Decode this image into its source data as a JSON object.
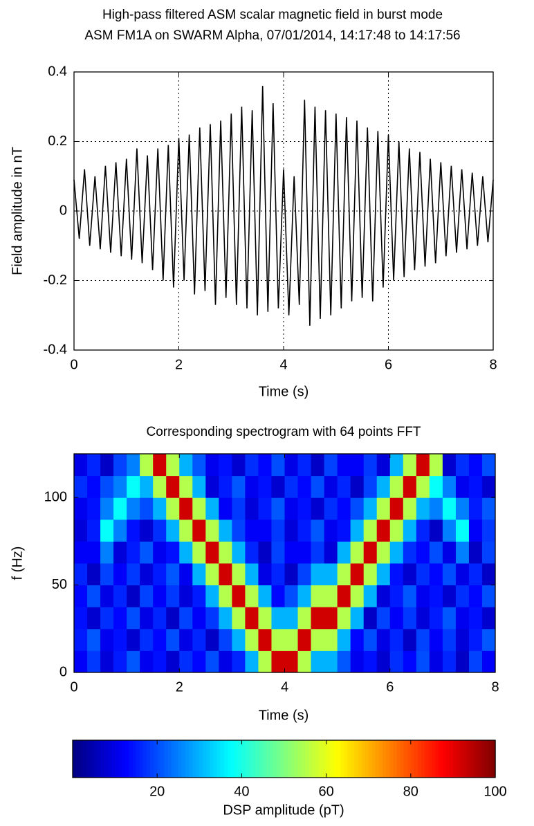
{
  "chart_data": [
    {
      "type": "line",
      "title": "High-pass filtered ASM scalar magnetic field in burst mode",
      "subtitle": "ASM FM1A on SWARM Alpha, 07/01/2014, 14:17:48 to 14:17:56",
      "xlabel": "Time (s)",
      "ylabel": "Field amplitude in nT",
      "color": "#000000",
      "grid": true,
      "xlim": [
        0,
        8
      ],
      "xticks": [
        0,
        2,
        4,
        6,
        8
      ],
      "ylim": [
        -0.4,
        0.4
      ],
      "yticks": [
        -0.4,
        -0.2,
        0,
        0.2,
        0.4
      ],
      "x": [
        0.0,
        0.1,
        0.2,
        0.3,
        0.4,
        0.5,
        0.6,
        0.7,
        0.8,
        0.9,
        1.0,
        1.1,
        1.2,
        1.3,
        1.4,
        1.5,
        1.6,
        1.7,
        1.8,
        1.9,
        2.0,
        2.1,
        2.2,
        2.3,
        2.4,
        2.5,
        2.6,
        2.7,
        2.8,
        2.9,
        3.0,
        3.1,
        3.2,
        3.3,
        3.4,
        3.5,
        3.6,
        3.7,
        3.8,
        3.9,
        4.0,
        4.1,
        4.2,
        4.3,
        4.4,
        4.5,
        4.6,
        4.7,
        4.8,
        4.9,
        5.0,
        5.1,
        5.2,
        5.3,
        5.4,
        5.5,
        5.6,
        5.7,
        5.8,
        5.9,
        6.0,
        6.1,
        6.2,
        6.3,
        6.4,
        6.5,
        6.6,
        6.7,
        6.8,
        6.9,
        7.0,
        7.1,
        7.2,
        7.3,
        7.4,
        7.5,
        7.6,
        7.7,
        7.8,
        7.9,
        8.0
      ],
      "values": [
        0.09,
        -0.08,
        0.12,
        -0.1,
        0.1,
        -0.11,
        0.13,
        -0.12,
        0.14,
        -0.13,
        0.15,
        -0.14,
        0.18,
        -0.15,
        0.16,
        -0.17,
        0.18,
        -0.2,
        0.19,
        -0.22,
        0.21,
        -0.2,
        0.22,
        -0.24,
        0.24,
        -0.23,
        0.25,
        -0.27,
        0.26,
        -0.25,
        0.28,
        -0.27,
        0.3,
        -0.28,
        0.29,
        -0.3,
        0.36,
        -0.29,
        0.31,
        -0.28,
        0.12,
        -0.3,
        0.1,
        -0.27,
        0.32,
        -0.33,
        0.3,
        -0.31,
        0.29,
        -0.3,
        0.28,
        -0.28,
        0.27,
        -0.26,
        0.26,
        -0.25,
        0.24,
        -0.26,
        0.23,
        -0.22,
        0.22,
        -0.2,
        0.2,
        -0.19,
        0.18,
        -0.17,
        0.17,
        -0.16,
        0.15,
        -0.15,
        0.14,
        -0.13,
        0.13,
        -0.12,
        0.12,
        -0.11,
        0.11,
        -0.1,
        0.1,
        -0.09,
        0.09
      ]
    },
    {
      "type": "heatmap",
      "title": "Corresponding spectrogram with 64 points FFT",
      "xlabel": "Time (s)",
      "ylabel": "f (Hz)",
      "colormap": "jet",
      "xlim": [
        0,
        8
      ],
      "xticks": [
        0,
        2,
        4,
        6,
        8
      ],
      "ylim": [
        0,
        125
      ],
      "yticks": [
        0,
        50,
        100
      ],
      "xbins": [
        0,
        0.25,
        0.5,
        0.75,
        1,
        1.25,
        1.5,
        1.75,
        2,
        2.25,
        2.5,
        2.75,
        3,
        3.25,
        3.5,
        3.75,
        4,
        4.25,
        4.5,
        4.75,
        5,
        5.25,
        5.5,
        5.75,
        6,
        6.25,
        6.5,
        6.75,
        7,
        7.25,
        7.5,
        7.75,
        8
      ],
      "ybins": [
        0,
        12.5,
        25,
        37.5,
        50,
        62.5,
        75,
        87.5,
        100,
        112.5,
        125
      ],
      "values": [
        [
          12,
          18,
          9,
          15,
          21,
          11,
          14,
          8,
          17,
          13,
          20,
          10,
          16,
          30,
          55,
          92,
          92,
          55,
          30,
          30,
          21,
          11,
          14,
          8,
          17,
          13,
          20,
          10,
          16,
          7,
          19,
          12
        ],
        [
          15,
          21,
          11,
          14,
          8,
          17,
          13,
          20,
          10,
          16,
          7,
          19,
          30,
          55,
          92,
          55,
          55,
          92,
          55,
          55,
          30,
          13,
          20,
          10,
          16,
          7,
          19,
          12,
          18,
          9,
          15,
          21
        ],
        [
          14,
          8,
          17,
          13,
          20,
          10,
          16,
          7,
          19,
          12,
          18,
          30,
          55,
          92,
          55,
          30,
          30,
          55,
          92,
          92,
          55,
          30,
          7,
          19,
          12,
          18,
          9,
          15,
          21,
          11,
          14,
          8
        ],
        [
          13,
          20,
          10,
          16,
          7,
          19,
          12,
          18,
          9,
          15,
          30,
          55,
          92,
          55,
          30,
          13,
          20,
          30,
          55,
          55,
          92,
          55,
          30,
          9,
          15,
          21,
          11,
          14,
          8,
          17,
          13,
          20
        ],
        [
          16,
          7,
          19,
          12,
          18,
          9,
          15,
          21,
          11,
          30,
          55,
          92,
          55,
          30,
          10,
          16,
          7,
          19,
          30,
          30,
          55,
          92,
          55,
          30,
          14,
          8,
          17,
          13,
          20,
          10,
          16,
          7
        ],
        [
          12,
          12,
          25,
          9,
          15,
          21,
          11,
          14,
          30,
          55,
          92,
          55,
          30,
          16,
          7,
          19,
          12,
          12,
          18,
          9,
          30,
          55,
          92,
          55,
          30,
          17,
          13,
          20,
          10,
          25,
          7,
          19
        ],
        [
          9,
          15,
          38,
          25,
          14,
          8,
          17,
          30,
          55,
          92,
          55,
          30,
          19,
          12,
          12,
          18,
          9,
          15,
          21,
          11,
          14,
          30,
          55,
          92,
          55,
          30,
          16,
          7,
          25,
          38,
          12,
          18
        ],
        [
          11,
          14,
          25,
          38,
          25,
          20,
          30,
          55,
          92,
          55,
          30,
          12,
          18,
          9,
          15,
          21,
          11,
          14,
          8,
          17,
          13,
          20,
          30,
          55,
          92,
          55,
          30,
          25,
          38,
          25,
          15,
          21
        ],
        [
          17,
          13,
          20,
          25,
          38,
          30,
          55,
          92,
          55,
          30,
          9,
          15,
          21,
          11,
          14,
          8,
          17,
          13,
          20,
          10,
          16,
          7,
          19,
          30,
          55,
          92,
          55,
          38,
          25,
          11,
          14,
          8
        ],
        [
          10,
          16,
          7,
          19,
          25,
          55,
          92,
          55,
          30,
          21,
          11,
          14,
          8,
          17,
          13,
          20,
          10,
          16,
          7,
          19,
          12,
          12,
          18,
          9,
          30,
          55,
          92,
          55,
          8,
          17,
          13,
          20
        ]
      ],
      "clim": [
        0,
        100
      ],
      "cticks": [
        20,
        40,
        60,
        80,
        100
      ],
      "colorbar_label": "DSP amplitude (pT)"
    }
  ]
}
